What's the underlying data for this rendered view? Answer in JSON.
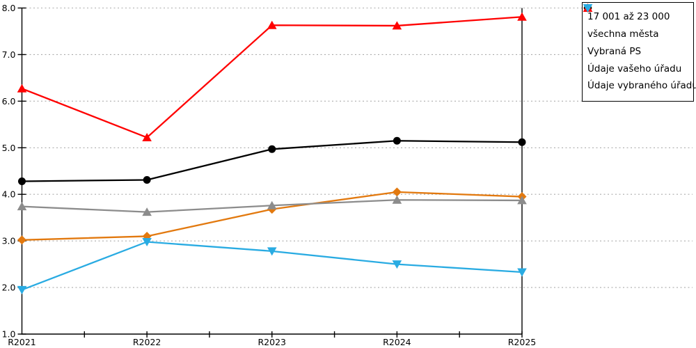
{
  "chart_data": {
    "type": "line",
    "title": "",
    "xlabel": "",
    "ylabel": "",
    "categories": [
      "R2021",
      "R2022",
      "R2023",
      "R2024",
      "R2025"
    ],
    "series": [
      {
        "name": "17 001 až 23 000",
        "marker": "diamond",
        "color": "#E2790F",
        "values": [
          3.02,
          3.1,
          3.68,
          4.05,
          3.95
        ]
      },
      {
        "name": "všechna města",
        "marker": "circle",
        "color": "#000000",
        "values": [
          4.28,
          4.31,
          4.97,
          5.15,
          5.12
        ]
      },
      {
        "name": "Vybraná PS",
        "marker": "triangle-up",
        "color": "#8C8C8C",
        "values": [
          3.74,
          3.62,
          3.76,
          3.88,
          3.87
        ]
      },
      {
        "name": "Údaje vašeho úřadu",
        "marker": "triangle-up",
        "color": "#FF0000",
        "values": [
          6.27,
          5.22,
          7.63,
          7.62,
          7.81
        ]
      },
      {
        "name": "Údaje vybraného úřadu",
        "marker": "triangle-down",
        "color": "#29ABE2",
        "values": [
          1.95,
          2.98,
          2.78,
          2.5,
          2.33
        ]
      }
    ],
    "ylim": [
      1.0,
      8.0
    ],
    "ytick_labels": [
      "1.0",
      "2.0",
      "3.0",
      "4.0",
      "5.0",
      "6.0",
      "7.0",
      "8.0"
    ],
    "grid": "horizontal-dotted",
    "legend_position": "top-right"
  },
  "colors": {
    "background": "#FFFFFF",
    "axis": "#000000",
    "gridline": "#ABABAB",
    "legend_border": "#000000"
  }
}
